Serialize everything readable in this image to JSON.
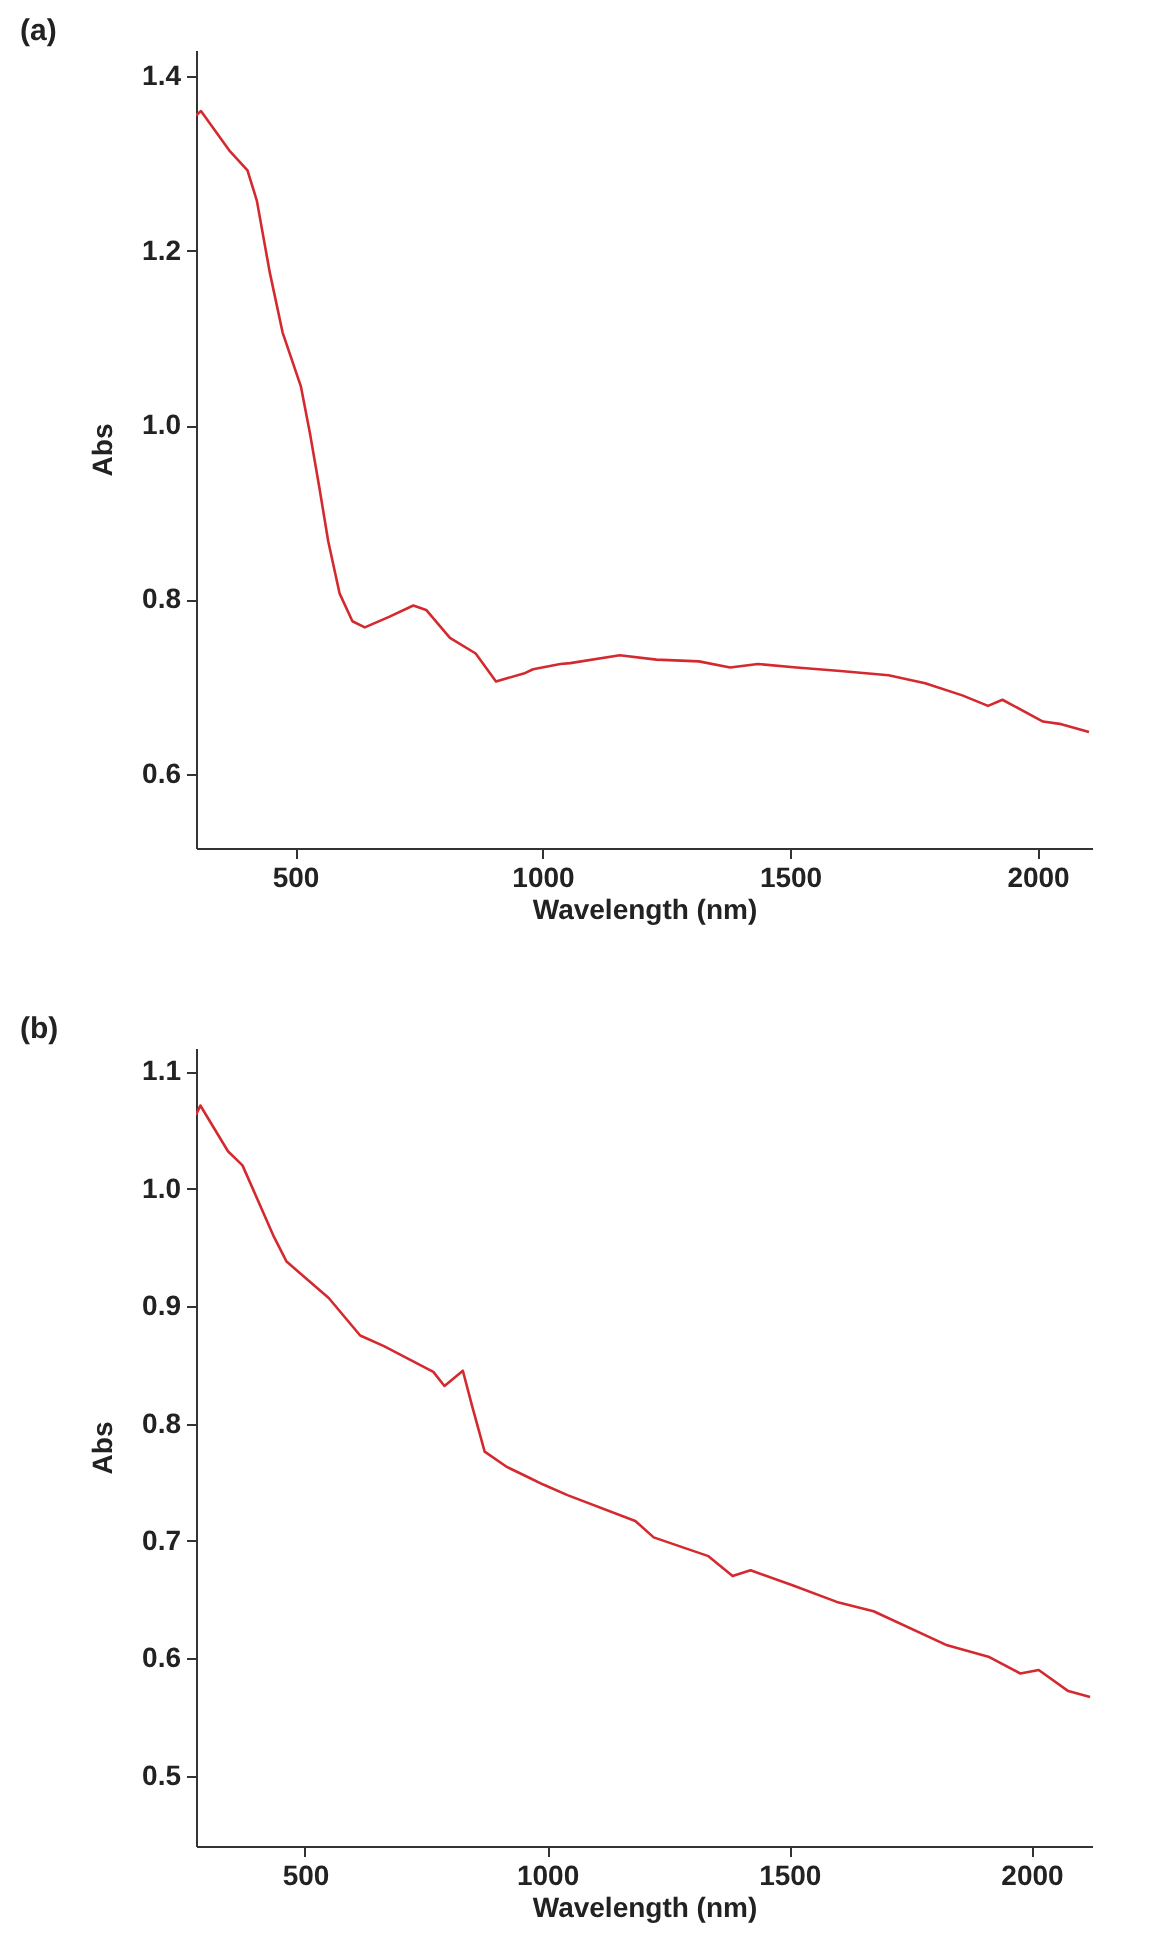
{
  "chart_data": [
    {
      "type": "line",
      "title": "(a)",
      "xlabel": "Wavelength (nm)",
      "ylabel": "Abs",
      "color": "#d42a2f",
      "x": [
        300,
        310,
        367,
        404,
        423,
        449,
        475,
        512,
        530,
        549,
        567,
        590,
        616,
        641,
        690,
        739,
        765,
        813,
        865,
        906,
        962,
        981,
        1036,
        1056,
        1156,
        1230,
        1316,
        1379,
        1435,
        1513,
        1602,
        1699,
        1773,
        1848,
        1900,
        1929,
        2011,
        2048,
        2104
      ],
      "values": [
        1.355,
        1.36,
        1.315,
        1.292,
        1.257,
        1.175,
        1.106,
        1.044,
        0.991,
        0.929,
        0.867,
        0.807,
        0.775,
        0.768,
        0.78,
        0.793,
        0.788,
        0.756,
        0.738,
        0.706,
        0.715,
        0.72,
        0.726,
        0.727,
        0.736,
        0.731,
        0.729,
        0.722,
        0.726,
        0.722,
        0.718,
        0.713,
        0.704,
        0.69,
        0.678,
        0.685,
        0.66,
        0.657,
        0.648
      ],
      "xlim": [
        300,
        2110
      ],
      "ylim": [
        0.515,
        1.43
      ],
      "xticks": [
        500,
        1000,
        1500,
        2000
      ],
      "yticks": [
        {
          "value": 0.6,
          "label": "0.6"
        },
        {
          "value": 0.8,
          "label": "0.8"
        },
        {
          "value": 1,
          "label": "1.0"
        },
        {
          "value": 1.2,
          "label": "1.2"
        },
        {
          "value": 1.4,
          "label": "1.4"
        }
      ]
    },
    {
      "type": "line",
      "title": "(b)",
      "xlabel": "Wavelength (nm)",
      "ylabel": "Abs",
      "color": "#d42a2f",
      "x": [
        275,
        284,
        341,
        371,
        436,
        462,
        549,
        614,
        663,
        765,
        788,
        826,
        845,
        871,
        917,
        962,
        992,
        1042,
        1182,
        1220,
        1333,
        1383,
        1420,
        1508,
        1598,
        1674,
        1826,
        1913,
        1977,
        2015,
        2076,
        2121
      ],
      "values": [
        1.063,
        1.071,
        1.032,
        1.02,
        0.959,
        0.938,
        0.907,
        0.875,
        0.866,
        0.844,
        0.832,
        0.845,
        0.815,
        0.776,
        0.763,
        0.754,
        0.748,
        0.739,
        0.717,
        0.703,
        0.687,
        0.67,
        0.675,
        0.662,
        0.648,
        0.64,
        0.611,
        0.601,
        0.587,
        0.59,
        0.572,
        0.567
      ],
      "xlim": [
        275,
        2125
      ],
      "ylim": [
        0.44,
        1.12
      ],
      "xticks": [
        500,
        1000,
        1500,
        2000
      ],
      "yticks": [
        {
          "value": 0.5,
          "label": "0.5"
        },
        {
          "value": 0.6,
          "label": "0.6"
        },
        {
          "value": 0.7,
          "label": "0.7"
        },
        {
          "value": 0.8,
          "label": "0.8"
        },
        {
          "value": 0.9,
          "label": "0.9"
        },
        {
          "value": 1,
          "label": "1.0"
        },
        {
          "value": 1.1,
          "label": "1.1"
        }
      ]
    }
  ]
}
